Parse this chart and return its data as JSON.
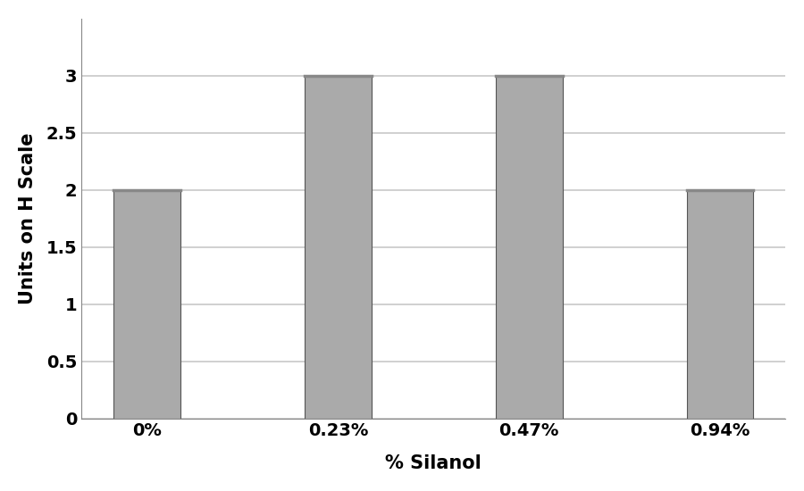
{
  "categories": [
    "0%",
    "0.23%",
    "0.47%",
    "0.94%"
  ],
  "values": [
    2.0,
    3.0,
    3.0,
    2.0
  ],
  "bar_color": "#aaaaaa",
  "bar_top_color": "#888888",
  "bar_edge_color": "#555555",
  "bar_edge_width": 0.8,
  "bar_width": 0.35,
  "xlabel": "% Silanol",
  "ylabel": "Units on H Scale",
  "ylim": [
    0,
    3.5
  ],
  "yticks": [
    0,
    0.5,
    1,
    1.5,
    2,
    2.5,
    3
  ],
  "ytick_labels": [
    "0",
    "0.5",
    "1",
    "1.5",
    "2",
    "2.5",
    "3"
  ],
  "xlabel_fontsize": 15,
  "ylabel_fontsize": 15,
  "tick_fontsize": 14,
  "background_color": "#ffffff",
  "grid_color": "#c8c8c8",
  "grid_linewidth": 1.2,
  "figsize": [
    9.0,
    5.5
  ],
  "dpi": 100
}
